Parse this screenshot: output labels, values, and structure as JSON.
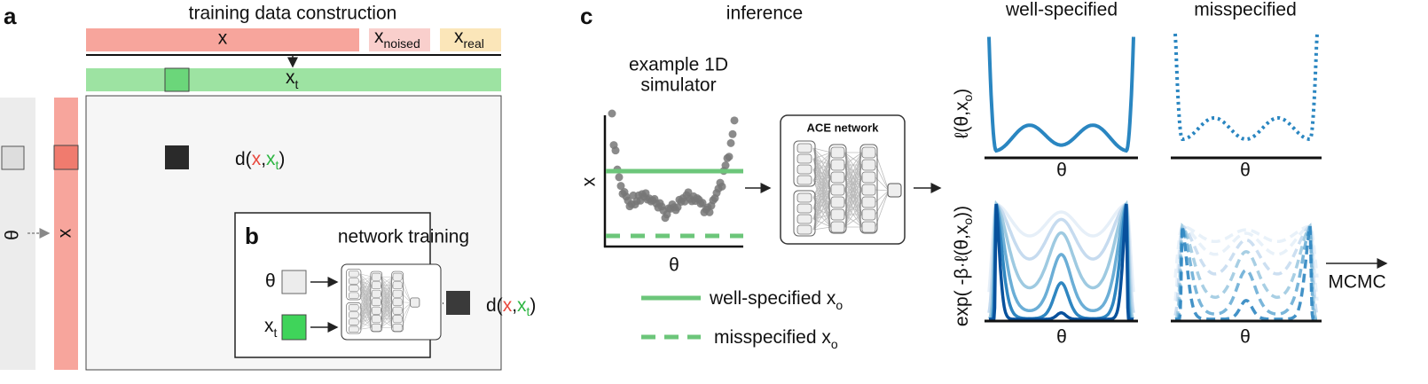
{
  "panel_a": {
    "label": "a",
    "title": "training data construction",
    "x_bar": "x",
    "x_noised": {
      "main": "x",
      "sub": "noised"
    },
    "x_real": {
      "main": "x",
      "sub": "real"
    },
    "x_t": {
      "main": "x",
      "sub": "t"
    },
    "distance": [
      "d(",
      "x",
      ",",
      "x",
      "t",
      ")"
    ],
    "theta_axis": "θ",
    "x_axis": "x"
  },
  "panel_b": {
    "label": "b",
    "title": "network training",
    "theta": "θ",
    "x_t": {
      "main": "x",
      "sub": "t"
    },
    "distance": [
      "d(",
      "x",
      ",",
      "x",
      "t",
      ")"
    ]
  },
  "panel_c": {
    "label": "c",
    "title": "inference",
    "simulator_title": [
      "example 1D",
      "simulator"
    ],
    "sim_ylabel": "x",
    "sim_xlabel": "θ",
    "network": "ACE network",
    "legend": [
      {
        "main": "well-specified x",
        "sub": "o"
      },
      {
        "main": "misspecified x",
        "sub": "o"
      }
    ],
    "columns": [
      "well-specified",
      "misspecified"
    ],
    "loss_ylabel": {
      "pre": "ℓ(θ,x",
      "sub": "o",
      "post": ")"
    },
    "posterior_ylabel": {
      "pre": "exp( -β·ℓ(θ,x",
      "sub": "o",
      "post": "))"
    },
    "theta_labels": [
      "θ",
      "θ",
      "θ",
      "θ"
    ],
    "mcmc": "MCMC"
  }
}
